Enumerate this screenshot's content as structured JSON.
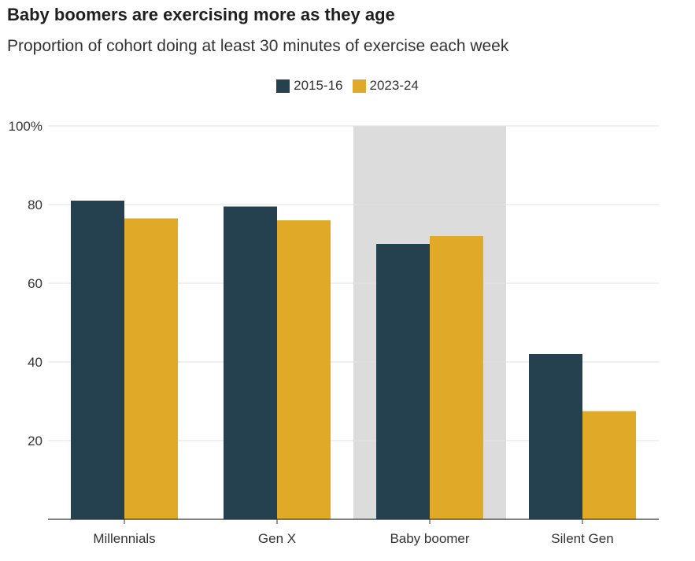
{
  "chart_data": {
    "type": "bar",
    "title": "Baby boomers are exercising more as they age",
    "subtitle": "Proportion of cohort doing at least 30 minutes of exercise each week",
    "categories": [
      "Millennials",
      "Gen X",
      "Baby boomer",
      "Silent Gen"
    ],
    "highlighted_category": "Baby boomer",
    "series": [
      {
        "name": "2015-16",
        "color": "#25404f",
        "values": [
          81,
          79.5,
          70,
          42
        ]
      },
      {
        "name": "2023-24",
        "color": "#e0aa28",
        "values": [
          76.5,
          76,
          72,
          27.5
        ]
      }
    ],
    "ylim": [
      0,
      100
    ],
    "yticks": [
      {
        "value": 20,
        "label": "20"
      },
      {
        "value": 40,
        "label": "40"
      },
      {
        "value": 60,
        "label": "60"
      },
      {
        "value": 80,
        "label": "80"
      },
      {
        "value": 100,
        "label": "100%"
      }
    ],
    "grid": true,
    "legend_position": "top-center",
    "highlight_color": "#dcdcdc"
  }
}
